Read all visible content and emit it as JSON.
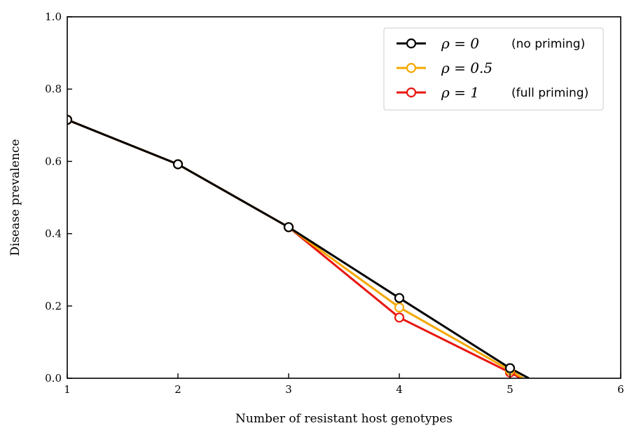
{
  "chart_data": {
    "type": "line",
    "xlabel": "Number of resistant host genotypes",
    "ylabel": "Disease prevalence",
    "xlim": [
      1,
      6
    ],
    "ylim": [
      0.0,
      1.0
    ],
    "x_ticks": [
      "1",
      "2",
      "3",
      "4",
      "5",
      "6"
    ],
    "y_ticks": [
      "0.0",
      "0.2",
      "0.4",
      "0.6",
      "0.8",
      "1.0"
    ],
    "grid": false,
    "legend_position": "top-right",
    "series": [
      {
        "name": "ρ = 0",
        "note": "(no priming)",
        "color": "#000000",
        "x": [
          1,
          2,
          3,
          4,
          5,
          5.17
        ],
        "y": [
          0.715,
          0.592,
          0.418,
          0.222,
          0.028,
          0.0
        ],
        "markers": [
          1,
          2,
          3,
          4,
          5
        ]
      },
      {
        "name": "ρ = 0.5",
        "note": "",
        "color": "#f5a800",
        "x": [
          1,
          2,
          3,
          4,
          5,
          5.12
        ],
        "y": [
          0.715,
          0.592,
          0.418,
          0.196,
          0.022,
          0.0
        ],
        "markers": [
          1,
          2,
          3,
          4,
          5
        ]
      },
      {
        "name": "ρ = 1",
        "note": "(full priming)",
        "color": "#e8160f",
        "x": [
          1,
          2,
          3,
          4,
          5,
          5.1
        ],
        "y": [
          0.715,
          0.592,
          0.418,
          0.168,
          0.016,
          0.0
        ],
        "markers": [
          1,
          2,
          3,
          4,
          5
        ]
      }
    ]
  }
}
